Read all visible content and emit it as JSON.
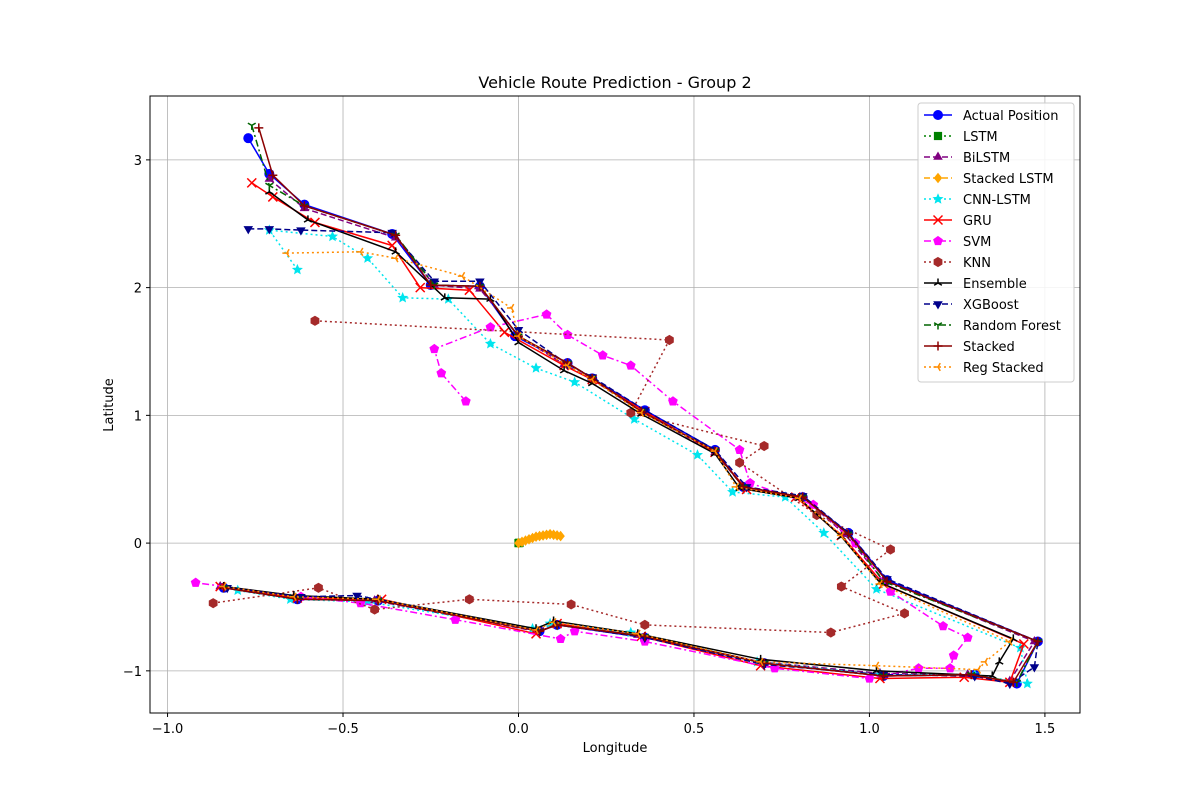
{
  "chart_data": {
    "type": "line",
    "title": "Vehicle Route Prediction - Group 2",
    "xlabel": "Longitude",
    "ylabel": "Latitude",
    "xlim": [
      -1.05,
      1.6
    ],
    "ylim": [
      -1.33,
      3.5
    ],
    "xticks": [
      -1.0,
      -0.5,
      0.0,
      0.5,
      1.0,
      1.5
    ],
    "xtick_labels": [
      "−1.0",
      "−0.5",
      "0.0",
      "0.5",
      "1.0",
      "1.5"
    ],
    "yticks": [
      -1,
      0,
      1,
      2,
      3
    ],
    "ytick_labels": [
      "−1",
      "0",
      "1",
      "2",
      "3"
    ],
    "grid": true,
    "legend_position": "top-right",
    "series": [
      {
        "name": "Actual Position",
        "color": "#0000ff",
        "dash": "solid",
        "marker": "circle",
        "x": [
          -0.77,
          -0.71,
          -0.61,
          -0.36,
          -0.25,
          -0.11,
          -0.01,
          0.14,
          0.21,
          0.36,
          0.56,
          0.64,
          0.81,
          0.94,
          1.05,
          1.48,
          1.42,
          1.3,
          1.04,
          0.7,
          0.36,
          0.11,
          0.06,
          -0.4,
          -0.63,
          -0.84
        ],
        "y": [
          3.17,
          2.89,
          2.65,
          2.42,
          2.02,
          2.01,
          1.62,
          1.41,
          1.29,
          1.04,
          0.73,
          0.44,
          0.36,
          0.08,
          -0.29,
          -0.77,
          -1.1,
          -1.03,
          -1.04,
          -0.94,
          -0.74,
          -0.64,
          -0.69,
          -0.45,
          -0.44,
          -0.35
        ]
      },
      {
        "name": "LSTM",
        "color": "#008000",
        "dash": "dotted",
        "marker": "square",
        "x": [
          0.0,
          0.001,
          0.002,
          0.003
        ],
        "y": [
          0.0,
          0.001,
          0.002,
          0.001
        ]
      },
      {
        "name": "BiLSTM",
        "color": "#800080",
        "dash": "dashed",
        "marker": "triangle-up",
        "x": [
          -0.71,
          -0.61,
          -0.35,
          -0.24,
          -0.11,
          0.0,
          0.13,
          0.21,
          0.35,
          0.56,
          0.64,
          0.81,
          0.93,
          1.04,
          1.47,
          1.4,
          1.28,
          1.03,
          0.69,
          0.34,
          0.1,
          0.05,
          -0.41,
          -0.64,
          -0.85
        ],
        "y": [
          2.85,
          2.62,
          2.39,
          2.02,
          1.99,
          1.62,
          1.4,
          1.28,
          1.03,
          0.71,
          0.44,
          0.36,
          0.07,
          -0.29,
          -0.77,
          -1.08,
          -1.03,
          -1.02,
          -0.93,
          -0.72,
          -0.63,
          -0.69,
          -0.45,
          -0.43,
          -0.34
        ]
      },
      {
        "name": "Stacked LSTM",
        "color": "#ffa500",
        "dash": "dashed",
        "marker": "diamond",
        "x": [
          0.0,
          0.01,
          0.02,
          0.03,
          0.04,
          0.05,
          0.06,
          0.07,
          0.08,
          0.09,
          0.1,
          0.11,
          0.12
        ],
        "y": [
          0.0,
          0.01,
          0.02,
          0.03,
          0.04,
          0.05,
          0.055,
          0.06,
          0.065,
          0.07,
          0.065,
          0.06,
          0.055
        ]
      },
      {
        "name": "CNN-LSTM",
        "color": "#00e5ee",
        "dash": "dotted",
        "marker": "star",
        "x": [
          -0.63,
          -0.71,
          -0.53,
          -0.43,
          -0.33,
          -0.2,
          -0.08,
          0.05,
          0.16,
          0.33,
          0.51,
          0.61,
          0.76,
          0.87,
          1.02,
          1.43,
          1.45,
          1.3,
          1.03,
          0.68,
          0.32,
          0.09,
          0.04,
          -0.43,
          -0.65,
          -0.8
        ],
        "y": [
          2.14,
          2.45,
          2.4,
          2.23,
          1.92,
          1.91,
          1.56,
          1.37,
          1.26,
          0.97,
          0.69,
          0.4,
          0.36,
          0.08,
          -0.36,
          -0.82,
          -1.1,
          -1.03,
          -1.03,
          -0.93,
          -0.7,
          -0.63,
          -0.67,
          -0.46,
          -0.44,
          -0.37
        ]
      },
      {
        "name": "GRU",
        "color": "#ff0000",
        "dash": "solid",
        "marker": "x",
        "x": [
          -0.76,
          -0.7,
          -0.58,
          -0.36,
          -0.28,
          -0.14,
          -0.04,
          0.13,
          0.21,
          0.36,
          0.56,
          0.65,
          0.79,
          0.92,
          1.04,
          1.44,
          1.4,
          1.27,
          1.03,
          0.69,
          0.35,
          0.11,
          0.05,
          -0.39,
          -0.63,
          -0.85
        ],
        "y": [
          2.82,
          2.71,
          2.51,
          2.33,
          2.0,
          1.98,
          1.65,
          1.39,
          1.28,
          1.03,
          0.71,
          0.42,
          0.36,
          0.06,
          -0.32,
          -0.79,
          -1.09,
          -1.05,
          -1.06,
          -0.96,
          -0.73,
          -0.63,
          -0.71,
          -0.44,
          -0.43,
          -0.34
        ]
      },
      {
        "name": "SVM",
        "color": "#ff00ff",
        "dash": "dashdot",
        "marker": "pentagon",
        "x": [
          -0.15,
          -0.22,
          -0.24,
          -0.08,
          0.08,
          0.14,
          0.24,
          0.32,
          0.44,
          0.63,
          0.66,
          0.84,
          0.96,
          1.06,
          1.21,
          1.28,
          1.24,
          1.23,
          1.14,
          1.0,
          0.73,
          0.36,
          0.16,
          0.12,
          -0.18,
          -0.45,
          -0.62,
          -0.92
        ],
        "y": [
          1.11,
          1.33,
          1.52,
          1.69,
          1.79,
          1.63,
          1.47,
          1.39,
          1.11,
          0.73,
          0.47,
          0.3,
          0.0,
          -0.38,
          -0.65,
          -0.74,
          -0.88,
          -0.98,
          -0.98,
          -1.06,
          -0.98,
          -0.77,
          -0.69,
          -0.75,
          -0.6,
          -0.47,
          -0.42,
          -0.31
        ]
      },
      {
        "name": "KNN",
        "color": "#a52a2a",
        "dash": "dotted",
        "marker": "hexagon",
        "x": [
          -0.58,
          0.43,
          0.32,
          0.7,
          0.63,
          0.85,
          1.06,
          0.92,
          1.1,
          0.89,
          0.36,
          0.15,
          -0.14,
          -0.41,
          -0.57,
          -0.87
        ],
        "y": [
          1.74,
          1.59,
          1.02,
          0.76,
          0.63,
          0.22,
          -0.05,
          -0.34,
          -0.55,
          -0.7,
          -0.64,
          -0.48,
          -0.44,
          -0.52,
          -0.35,
          -0.47
        ]
      },
      {
        "name": "Ensemble",
        "color": "#000000",
        "dash": "solid",
        "marker": "tri",
        "x": [
          -0.71,
          -0.6,
          -0.35,
          -0.21,
          -0.08,
          0.0,
          0.13,
          0.21,
          0.35,
          0.56,
          0.63,
          0.8,
          0.92,
          1.03,
          1.41,
          1.37,
          1.35,
          1.02,
          0.69,
          0.34,
          0.1,
          0.05,
          -0.4,
          -0.64,
          -0.84
        ],
        "y": [
          2.75,
          2.53,
          2.28,
          1.92,
          1.91,
          1.57,
          1.35,
          1.25,
          1.01,
          0.7,
          0.43,
          0.35,
          0.05,
          -0.31,
          -0.75,
          -0.93,
          -1.04,
          -1.0,
          -0.91,
          -0.71,
          -0.61,
          -0.67,
          -0.44,
          -0.41,
          -0.34
        ]
      },
      {
        "name": "XGBoost",
        "color": "#00008b",
        "dash": "dashed",
        "marker": "triangle-down",
        "x": [
          -0.77,
          -0.71,
          -0.62,
          -0.36,
          -0.24,
          -0.11,
          0.0,
          0.14,
          0.21,
          0.36,
          0.56,
          0.65,
          0.81,
          0.94,
          1.05,
          1.48,
          1.47,
          1.4,
          1.3,
          1.04,
          0.7,
          0.36,
          0.11,
          0.06,
          -0.46,
          -0.62,
          -0.83
        ],
        "y": [
          2.46,
          2.46,
          2.45,
          2.43,
          2.05,
          2.05,
          1.67,
          1.4,
          1.3,
          1.04,
          0.73,
          0.44,
          0.37,
          0.08,
          -0.28,
          -0.77,
          -0.97,
          -1.1,
          -1.04,
          -1.03,
          -0.95,
          -0.74,
          -0.64,
          -0.69,
          -0.41,
          -0.42,
          -0.35
        ]
      },
      {
        "name": "Random Forest",
        "color": "#006400",
        "dash": "dashdot",
        "marker": "tri-down",
        "x": [
          -0.76,
          -0.71,
          -0.61,
          -0.35,
          -0.24,
          -0.11,
          0.0,
          0.14,
          0.21,
          0.35,
          0.56,
          0.64,
          0.81,
          0.94,
          1.04,
          1.48,
          1.42,
          1.29,
          1.04,
          0.7,
          0.36,
          0.11,
          0.06,
          -0.4,
          -0.63,
          -0.84
        ],
        "y": [
          3.27,
          2.8,
          2.64,
          2.41,
          2.02,
          2.01,
          1.62,
          1.41,
          1.29,
          1.03,
          0.72,
          0.44,
          0.36,
          0.07,
          -0.3,
          -0.77,
          -1.09,
          -1.03,
          -1.04,
          -0.94,
          -0.73,
          -0.64,
          -0.69,
          -0.45,
          -0.44,
          -0.35
        ]
      },
      {
        "name": "Stacked",
        "color": "#8b0000",
        "dash": "solid",
        "marker": "plus",
        "x": [
          -0.74,
          -0.7,
          -0.61,
          -0.35,
          -0.25,
          -0.11,
          0.0,
          0.14,
          0.21,
          0.35,
          0.56,
          0.64,
          0.81,
          0.94,
          1.05,
          1.48,
          1.41,
          1.29,
          1.04,
          0.7,
          0.36,
          0.11,
          0.06,
          -0.4,
          -0.63,
          -0.84
        ],
        "y": [
          3.25,
          2.88,
          2.64,
          2.41,
          2.02,
          2.01,
          1.62,
          1.41,
          1.29,
          1.03,
          0.72,
          0.44,
          0.36,
          0.07,
          -0.3,
          -0.77,
          -1.09,
          -1.03,
          -1.04,
          -0.94,
          -0.73,
          -0.64,
          -0.69,
          -0.45,
          -0.44,
          -0.35
        ]
      },
      {
        "name": "Reg Stacked",
        "color": "#ff8c00",
        "dash": "dotted",
        "marker": "tri-left",
        "x": [
          -0.66,
          -0.45,
          -0.35,
          -0.16,
          -0.02,
          0.0,
          0.14,
          0.21,
          0.35,
          0.56,
          0.62,
          0.8,
          0.92,
          1.03,
          1.4,
          1.33,
          1.31,
          1.02,
          0.69,
          0.34,
          0.1,
          0.05,
          -0.4,
          -0.64,
          -0.84
        ],
        "y": [
          2.27,
          2.28,
          2.23,
          2.09,
          1.84,
          1.62,
          1.39,
          1.28,
          1.02,
          0.72,
          0.44,
          0.35,
          0.06,
          -0.32,
          -0.77,
          -0.93,
          -0.99,
          -0.96,
          -0.93,
          -0.71,
          -0.62,
          -0.68,
          -0.44,
          -0.42,
          -0.34
        ]
      }
    ]
  }
}
